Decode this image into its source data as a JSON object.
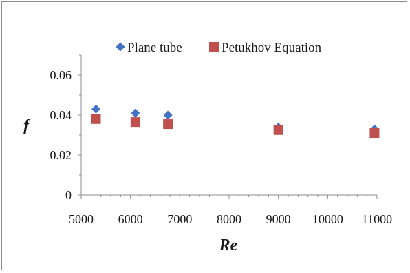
{
  "chart_data": {
    "type": "scatter",
    "title": "",
    "xlabel": "Re",
    "ylabel": "f",
    "xlim": [
      5000,
      11000
    ],
    "ylim": [
      0,
      0.07
    ],
    "xticks": [
      "5000",
      "6000",
      "7000",
      "8000",
      "9000",
      "10000",
      "11000"
    ],
    "yticks": [
      "0",
      "0.02",
      "0.04",
      "0.06"
    ],
    "legend_position": "top",
    "series": [
      {
        "name": "Plane tube",
        "marker": "diamond",
        "color": "#4472c4",
        "points": [
          {
            "x": 5300,
            "y": 0.043
          },
          {
            "x": 6100,
            "y": 0.041
          },
          {
            "x": 6760,
            "y": 0.04
          },
          {
            "x": 9000,
            "y": 0.034
          },
          {
            "x": 10950,
            "y": 0.033
          }
        ]
      },
      {
        "name": "Petukhov Equation",
        "marker": "square",
        "color": "#c0504d",
        "points": [
          {
            "x": 5300,
            "y": 0.038
          },
          {
            "x": 6100,
            "y": 0.0365
          },
          {
            "x": 6760,
            "y": 0.0355
          },
          {
            "x": 9000,
            "y": 0.0325
          },
          {
            "x": 10950,
            "y": 0.031
          }
        ]
      }
    ]
  }
}
